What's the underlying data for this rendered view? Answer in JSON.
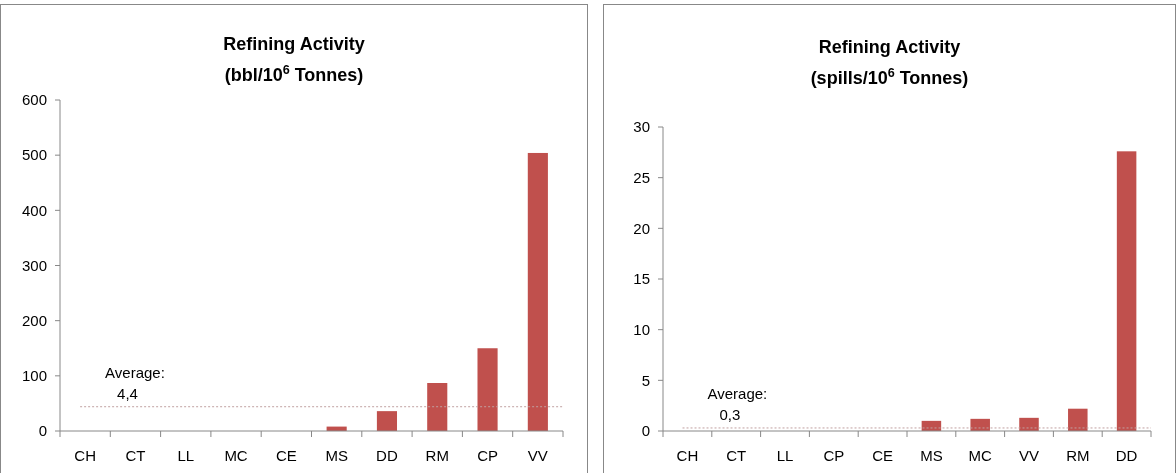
{
  "chart_data": [
    {
      "type": "bar",
      "title": "Refining Activity",
      "subtitle": "(bbl/10$^{6}$ Tonnes)",
      "categories": [
        "CH",
        "CT",
        "LL",
        "MC",
        "CE",
        "MS",
        "DD",
        "RM",
        "CP",
        "VV"
      ],
      "values": [
        0,
        0,
        0,
        0,
        0,
        8,
        36,
        87,
        150,
        504
      ],
      "color": "#c0504d",
      "ylim": [
        0,
        600
      ],
      "yticks": [
        0,
        100,
        200,
        300,
        400,
        500,
        600
      ],
      "ref_lines": [
        {
          "axis": "y",
          "value": 44,
          "color": "#c0a0a0",
          "line_style": "dotted"
        }
      ],
      "annotations": [
        "Average:\n4,4"
      ]
    },
    {
      "type": "bar",
      "title": "Refining Activity",
      "subtitle": "(spills/10$^{6}$ Tonnes)",
      "categories": [
        "CH",
        "CT",
        "LL",
        "CP",
        "CE",
        "MS",
        "MC",
        "VV",
        "RM",
        "DD"
      ],
      "values": [
        0,
        0,
        0,
        0,
        0,
        1.0,
        1.2,
        1.3,
        2.2,
        27.6
      ],
      "color": "#c0504d",
      "ylim": [
        0,
        30
      ],
      "yticks": [
        0,
        5,
        10,
        15,
        20,
        25,
        30
      ],
      "ref_lines": [
        {
          "axis": "y",
          "value": 0.3,
          "color": "#c0a0a0",
          "line_style": "dotted"
        }
      ],
      "annotations": [
        "Average:\n0,3"
      ]
    }
  ]
}
